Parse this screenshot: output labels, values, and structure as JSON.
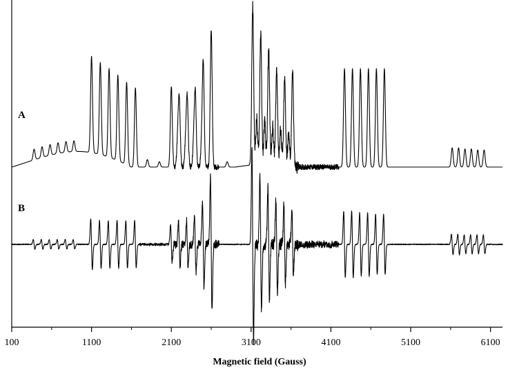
{
  "chart_data": {
    "type": "line",
    "title": "",
    "xlabel": "Magnetic field (Gauss)",
    "ylabel": "",
    "xlim": [
      100,
      6250
    ],
    "xticks": [
      100,
      1100,
      2100,
      3100,
      4100,
      5100,
      6100
    ],
    "grid": false,
    "legend": "none",
    "series": [
      {
        "name": "A",
        "kind": "absorption",
        "description_role": "upper trace",
        "baseline_regions": [
          {
            "from": 100,
            "to": 1600,
            "shape": "broad-hump",
            "peak_at": 800,
            "height": 0.18
          }
        ],
        "groups": [
          {
            "positions": [
              380,
              480,
              580,
              680,
              780,
              880
            ],
            "heights": [
              0.1,
              0.1,
              0.1,
              0.1,
              0.1,
              0.1
            ]
          },
          {
            "positions": [
              1100,
              1210,
              1320,
              1430,
              1540,
              1650
            ],
            "heights": [
              0.9,
              0.86,
              0.83,
              0.8,
              0.77,
              0.74
            ]
          },
          {
            "positions": [
              1800,
              1950,
              2600,
              2800
            ],
            "heights": [
              0.07,
              0.05,
              0.06,
              0.05
            ]
          },
          {
            "positions": [
              2100,
              2200,
              2300,
              2400,
              2500,
              2600
            ],
            "heights": [
              0.75,
              0.6,
              0.62,
              0.68,
              0.95,
              1.22
            ]
          },
          {
            "positions": [
              2180,
              2280,
              2380,
              2480
            ],
            "heights": [
              0.25,
              0.22,
              0.2,
              0.18
            ]
          },
          {
            "positions": [
              3120,
              3220,
              3320,
              3420,
              3520,
              3620
            ],
            "heights": [
              1.5,
              1.25,
              1.1,
              0.92,
              0.82,
              0.88
            ]
          },
          {
            "positions": [
              3170,
              3270,
              3370,
              3470,
              3570
            ],
            "heights": [
              0.45,
              0.42,
              0.38,
              0.35,
              0.3
            ]
          },
          {
            "positions": [
              4270,
              4370,
              4470,
              4570,
              4670,
              4770
            ],
            "heights": [
              0.92,
              0.92,
              0.92,
              0.92,
              0.92,
              0.92
            ]
          },
          {
            "positions": [
              5620,
              5700,
              5780,
              5860,
              5940,
              6020
            ],
            "heights": [
              0.18,
              0.18,
              0.17,
              0.17,
              0.16,
              0.16
            ]
          }
        ]
      },
      {
        "name": "B",
        "kind": "first-derivative",
        "description_role": "lower trace",
        "groups": [
          {
            "positions": [
              380,
              480,
              580,
              680,
              780,
              880
            ],
            "amplitudes": [
              0.06,
              0.06,
              0.06,
              0.06,
              0.06,
              0.06
            ]
          },
          {
            "positions": [
              1100,
              1210,
              1320,
              1430,
              1540,
              1650
            ],
            "amplitudes": [
              0.32,
              0.3,
              0.3,
              0.3,
              0.3,
              0.3
            ]
          },
          {
            "positions": [
              2100,
              2200,
              2300,
              2400,
              2500,
              2600
            ],
            "amplitudes": [
              0.25,
              0.28,
              0.3,
              0.35,
              0.55,
              0.85
            ]
          },
          {
            "positions": [
              3120,
              3220,
              3320,
              3420,
              3520,
              3620
            ],
            "amplitudes": [
              1.2,
              0.85,
              0.7,
              0.6,
              0.5,
              0.42
            ]
          },
          {
            "positions": [
              4270,
              4370,
              4470,
              4570,
              4670,
              4770
            ],
            "amplitudes": [
              0.42,
              0.42,
              0.4,
              0.4,
              0.38,
              0.38
            ]
          },
          {
            "positions": [
              5620,
              5700,
              5780,
              5860,
              5940,
              6020
            ],
            "amplitudes": [
              0.13,
              0.13,
              0.12,
              0.12,
              0.12,
              0.12
            ]
          }
        ]
      }
    ]
  }
}
